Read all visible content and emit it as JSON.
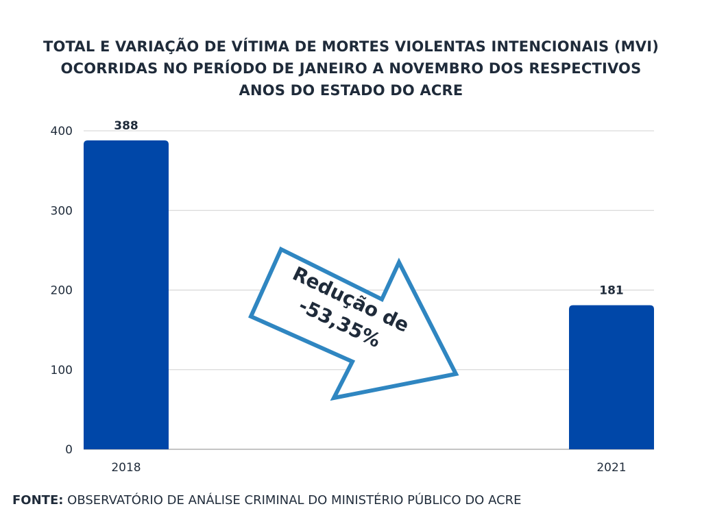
{
  "title_lines": [
    "TOTAL E VARIAÇÃO DE VÍTIMA DE MORTES VIOLENTAS INTENCIONAIS (MVI)",
    "OCORRIDAS NO PERÍODO DE JANEIRO A NOVEMBRO DOS RESPECTIVOS",
    "ANOS DO ESTADO DO ACRE"
  ],
  "footer": {
    "prefix": "FONTE:",
    "text": " OBSERVATÓRIO DE ANÁLISE CRIMINAL DO MINISTÉRIO PÚBLICO DO ACRE"
  },
  "annotation": {
    "line1": "Redução de",
    "line2": "-53,35%"
  },
  "colors": {
    "bar": "#0047a8",
    "arrow": "#2f86c1",
    "grid": "#d0d0d0",
    "text": "#1f2b3a"
  },
  "chart_data": {
    "type": "bar",
    "title": "TOTAL E VARIAÇÃO DE VÍTIMA DE MORTES VIOLENTAS INTENCIONAIS (MVI) OCORRIDAS NO PERÍODO DE JANEIRO A NOVEMBRO DOS RESPECTIVOS ANOS DO ESTADO DO ACRE",
    "categories": [
      "2018",
      "2021"
    ],
    "values": [
      388,
      181
    ],
    "data_labels": [
      "388",
      "181"
    ],
    "xlabel": "",
    "ylabel": "",
    "ylim": [
      0,
      400
    ],
    "yticks": [
      0,
      100,
      200,
      300,
      400
    ],
    "grid": true,
    "legend": "none"
  }
}
